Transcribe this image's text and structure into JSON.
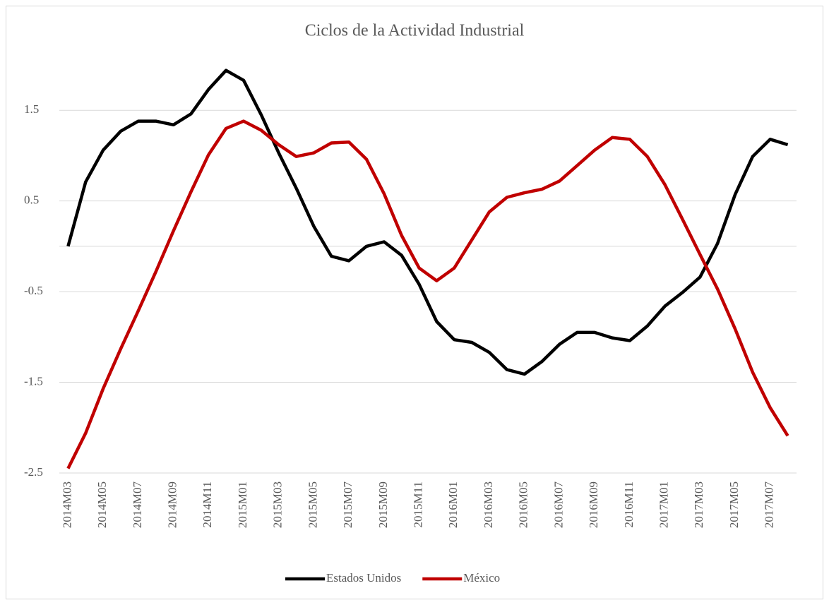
{
  "chart_data": {
    "type": "line",
    "title": "Ciclos de la Actividad Industrial",
    "categories": [
      "2014M03",
      null,
      "2014M05",
      null,
      "2014M07",
      null,
      "2014M09",
      null,
      "2014M11",
      null,
      "2015M01",
      null,
      "2015M03",
      null,
      "2015M05",
      null,
      "2015M07",
      null,
      "2015M09",
      null,
      "2015M11",
      null,
      "2016M01",
      null,
      "2016M03",
      null,
      "2016M05",
      null,
      "2016M07",
      null,
      "2016M09",
      null,
      "2016M11",
      null,
      "2017M01",
      null,
      "2017M03",
      null,
      "2017M05",
      null,
      "2017M07",
      null
    ],
    "series": [
      {
        "name": "Estados Unidos",
        "color": "#000000",
        "values": [
          0.0,
          0.71,
          1.06,
          1.27,
          1.38,
          1.38,
          1.34,
          1.46,
          1.73,
          1.94,
          1.83,
          1.45,
          1.03,
          0.64,
          0.22,
          -0.11,
          -0.16,
          0.0,
          0.05,
          -0.1,
          -0.42,
          -0.83,
          -1.03,
          -1.06,
          -1.17,
          -1.36,
          -1.41,
          -1.27,
          -1.08,
          -0.95,
          -0.95,
          -1.01,
          -1.04,
          -0.88,
          -0.66,
          -0.51,
          -0.34,
          0.03,
          0.57,
          0.99,
          1.18,
          1.12
        ]
      },
      {
        "name": "México",
        "color": "#c00000",
        "values": [
          -2.45,
          -2.06,
          -1.57,
          -1.13,
          -0.71,
          -0.28,
          0.17,
          0.6,
          1.01,
          1.3,
          1.38,
          1.28,
          1.12,
          0.99,
          1.03,
          1.14,
          1.15,
          0.96,
          0.58,
          0.12,
          -0.24,
          -0.38,
          -0.24,
          0.07,
          0.38,
          0.54,
          0.59,
          0.63,
          0.72,
          0.89,
          1.06,
          1.2,
          1.18,
          0.99,
          0.68,
          0.3,
          -0.09,
          -0.47,
          -0.91,
          -1.39,
          -1.78,
          -2.09
        ]
      }
    ],
    "ylim": [
      -2.5,
      2.0
    ],
    "yticks": [
      -2.5,
      -1.5,
      -0.5,
      0.5,
      1.5
    ],
    "grid": true,
    "legend": "bottom"
  }
}
